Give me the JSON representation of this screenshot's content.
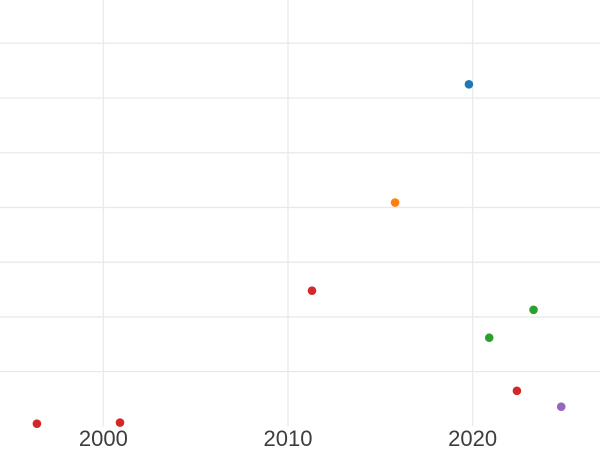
{
  "chart_data": {
    "type": "scatter",
    "title": "",
    "xlabel": "",
    "ylabel": "",
    "xlim": [
      1994.4,
      2026.9
    ],
    "ylim": [
      0,
      7.79
    ],
    "grid": true,
    "legend_position": "none",
    "x_ticks": [
      {
        "value": 2000,
        "label": "2000"
      },
      {
        "value": 2010,
        "label": "2010"
      },
      {
        "value": 2020,
        "label": "2020"
      }
    ],
    "y_gridline_values": [
      1,
      2,
      3,
      4,
      5,
      6,
      7
    ],
    "y_axis_note": "y tick labels are cropped out of view; y values are estimated in gridline units above the visible plot bottom (one gridline = 1 unit)",
    "series": [
      {
        "name": "red",
        "color": "#d62728",
        "points": [
          [
            1996.4,
            0.05
          ],
          [
            2000.9,
            0.07
          ],
          [
            2011.3,
            2.48
          ],
          [
            2022.4,
            0.65
          ]
        ]
      },
      {
        "name": "orange",
        "color": "#ff7f0e",
        "points": [
          [
            2015.8,
            4.09
          ]
        ]
      },
      {
        "name": "blue",
        "color": "#1f77b4",
        "points": [
          [
            2019.8,
            6.25
          ]
        ]
      },
      {
        "name": "green",
        "color": "#2ca02c",
        "points": [
          [
            2020.9,
            1.62
          ],
          [
            2023.3,
            2.13
          ]
        ]
      },
      {
        "name": "purple",
        "color": "#9467bd",
        "points": [
          [
            2024.8,
            0.36
          ]
        ]
      }
    ],
    "style": {
      "background": "#ffffff",
      "grid_color": "#e9e9e9",
      "tick_label_color": "#3d3d3d",
      "tick_font_size_px": 22,
      "marker_radius_px": 4.3
    }
  }
}
